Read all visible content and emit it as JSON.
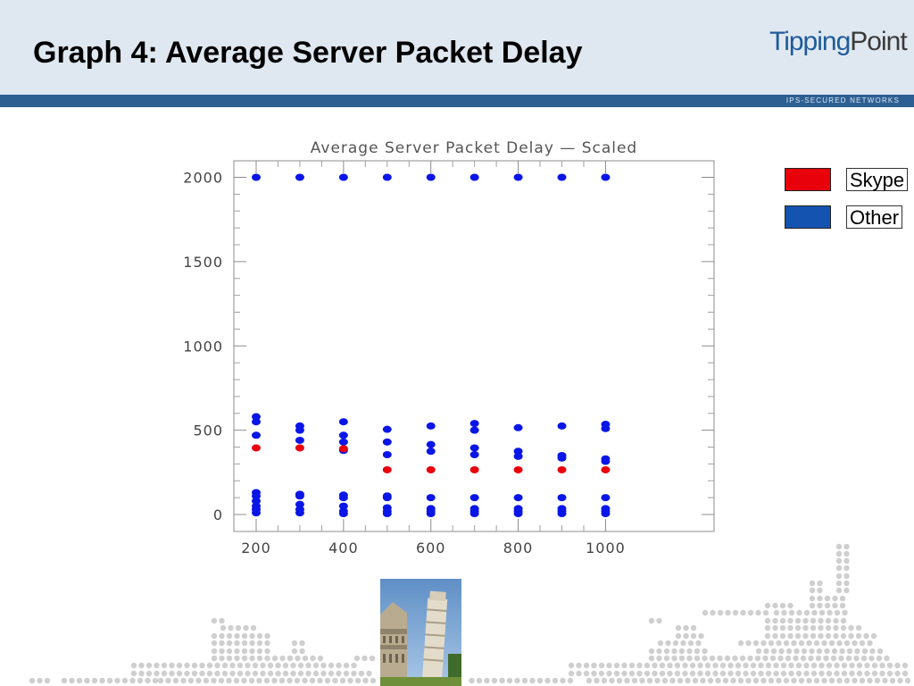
{
  "slide": {
    "title": "Graph 4: Average Server Packet Delay",
    "logo_part1": "Tipping",
    "logo_part2": "Point",
    "tagline": "IPS-SECURED NETWORKS"
  },
  "colors": {
    "header_bg": "#dfe8f1",
    "band": "#2d5f92",
    "skype": "#e8000b",
    "other_point": "#0a16e6",
    "other_legend": "#1553b0",
    "dots": "#cfcfcf"
  },
  "chart_data": {
    "type": "scatter",
    "title": "Average Server Packet Delay — Scaled",
    "xlabel": "",
    "ylabel": "",
    "xlim": [
      170,
      1020
    ],
    "ylim": [
      -100,
      2100
    ],
    "x_ticks": [
      200,
      400,
      600,
      800,
      1000
    ],
    "y_ticks": [
      0,
      500,
      1000,
      1500,
      2000
    ],
    "grid": false,
    "legend_position": "right-outside",
    "series": [
      {
        "name": "Skype",
        "color": "#e8000b",
        "points": [
          [
            200,
            395
          ],
          [
            300,
            395
          ],
          [
            400,
            390
          ],
          [
            500,
            265
          ],
          [
            600,
            265
          ],
          [
            700,
            265
          ],
          [
            800,
            265
          ],
          [
            900,
            265
          ],
          [
            1000,
            265
          ]
        ]
      },
      {
        "name": "Other",
        "color": "#0a16e6",
        "points": [
          [
            200,
            2000
          ],
          [
            300,
            2000
          ],
          [
            400,
            2000
          ],
          [
            500,
            2000
          ],
          [
            600,
            2000
          ],
          [
            700,
            2000
          ],
          [
            800,
            2000
          ],
          [
            900,
            2000
          ],
          [
            1000,
            2000
          ],
          [
            200,
            580
          ],
          [
            200,
            550
          ],
          [
            200,
            470
          ],
          [
            200,
            130
          ],
          [
            200,
            110
          ],
          [
            200,
            80
          ],
          [
            200,
            50
          ],
          [
            200,
            30
          ],
          [
            200,
            10
          ],
          [
            300,
            525
          ],
          [
            300,
            500
          ],
          [
            300,
            440
          ],
          [
            300,
            120
          ],
          [
            300,
            110
          ],
          [
            300,
            60
          ],
          [
            300,
            30
          ],
          [
            300,
            10
          ],
          [
            400,
            550
          ],
          [
            400,
            470
          ],
          [
            400,
            430
          ],
          [
            400,
            380
          ],
          [
            400,
            115
          ],
          [
            400,
            100
          ],
          [
            400,
            50
          ],
          [
            400,
            20
          ],
          [
            400,
            5
          ],
          [
            500,
            505
          ],
          [
            500,
            430
          ],
          [
            500,
            355
          ],
          [
            500,
            110
          ],
          [
            500,
            100
          ],
          [
            500,
            40
          ],
          [
            500,
            20
          ],
          [
            500,
            5
          ],
          [
            600,
            525
          ],
          [
            600,
            415
          ],
          [
            600,
            375
          ],
          [
            600,
            100
          ],
          [
            600,
            35
          ],
          [
            600,
            20
          ],
          [
            600,
            5
          ],
          [
            700,
            540
          ],
          [
            700,
            500
          ],
          [
            700,
            395
          ],
          [
            700,
            355
          ],
          [
            700,
            100
          ],
          [
            700,
            35
          ],
          [
            700,
            20
          ],
          [
            700,
            5
          ],
          [
            800,
            515
          ],
          [
            800,
            375
          ],
          [
            800,
            345
          ],
          [
            800,
            100
          ],
          [
            800,
            35
          ],
          [
            800,
            20
          ],
          [
            800,
            5
          ],
          [
            900,
            525
          ],
          [
            900,
            350
          ],
          [
            900,
            335
          ],
          [
            900,
            100
          ],
          [
            900,
            35
          ],
          [
            900,
            20
          ],
          [
            900,
            5
          ],
          [
            1000,
            535
          ],
          [
            1000,
            510
          ],
          [
            1000,
            330
          ],
          [
            1000,
            315
          ],
          [
            1000,
            100
          ],
          [
            1000,
            35
          ],
          [
            1000,
            20
          ],
          [
            1000,
            5
          ]
        ]
      }
    ]
  }
}
